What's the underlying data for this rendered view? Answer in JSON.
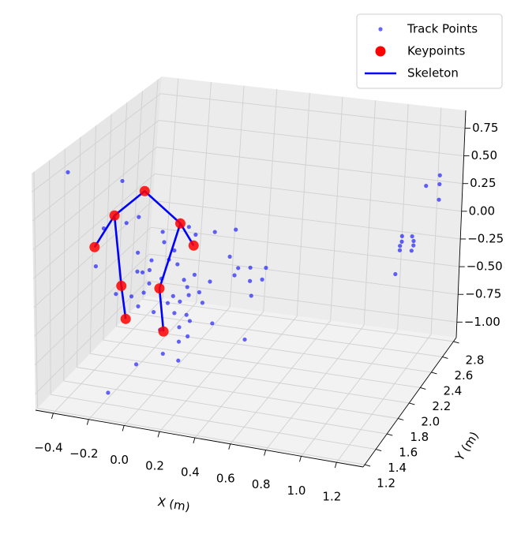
{
  "chart_data": {
    "type": "scatter3d",
    "xlabel": "X (m)",
    "ylabel": "Y (m)",
    "xlim": [
      -0.5,
      1.35
    ],
    "ylim": [
      1.17,
      2.85
    ],
    "zlim": [
      -1.14,
      0.91
    ],
    "xticks": [
      {
        "value": -0.4,
        "label": "−0.4"
      },
      {
        "value": -0.2,
        "label": "−0.2"
      },
      {
        "value": 0,
        "label": "0.0"
      },
      0.2,
      0.4,
      0.6,
      0.8,
      {
        "value": 1,
        "label": "1.0"
      },
      1.2
    ],
    "yticks": [
      1.2,
      1.4,
      1.6,
      1.8,
      {
        "value": 2,
        "label": "2.0"
      },
      2.2,
      2.4,
      2.6,
      2.8
    ],
    "zticks": [
      {
        "value": -1,
        "label": "−1.00"
      },
      {
        "value": -0.75,
        "label": "−0.75"
      },
      {
        "value": -0.5,
        "label": "−0.50"
      },
      {
        "value": -0.25,
        "label": "−0.25"
      },
      {
        "value": 0,
        "label": "0.00"
      },
      0.25,
      {
        "value": 0.5,
        "label": "0.50"
      },
      0.75
    ],
    "grid": true,
    "legend": "upper right",
    "series": [
      {
        "name": "Track Points",
        "kind": "points",
        "color": "#0000ff",
        "x": [
          -0.44,
          -0.34,
          -0.31,
          -0.24,
          -0.48,
          -0.44,
          -0.24,
          -0.24,
          -0.21,
          -0.17,
          -0.16,
          -0.1,
          -0.09,
          -0.03,
          -0.06,
          -0.01,
          0.03,
          0.05,
          0.09,
          0.18,
          0.12,
          0.06,
          0.01,
          -0.03,
          -0.06,
          -0.02,
          0.05,
          0.07,
          0.01,
          0.06,
          0.01,
          -0.08,
          0.01,
          -0.16,
          -0.21,
          -0.27,
          -0.23,
          -0.2,
          -0.17,
          -0.14,
          -0.1,
          0.09,
          0.05,
          0.2,
          0.32,
          0.29,
          0.34,
          0.41,
          0.5,
          0.41,
          0.48,
          0.42,
          0.2,
          0.39,
          0.32,
          -0.1,
          0.14,
          -0.36,
          1.26,
          1.18,
          1.26,
          1.26,
          1.05,
          1.05,
          1.04,
          1.04,
          1.11,
          1.12,
          1.12,
          1.11,
          1.02
        ],
        "y": [
          1.5,
          2,
          2,
          2,
          2,
          2,
          2,
          2,
          2,
          2,
          2,
          2,
          2,
          2,
          2,
          2,
          2,
          2,
          2,
          2,
          2,
          2,
          2,
          2,
          2,
          2,
          2,
          2,
          2,
          2,
          2,
          2,
          2,
          1.8,
          1.5,
          2,
          2,
          2,
          2,
          2,
          2,
          2,
          2,
          2,
          2,
          2,
          2,
          2,
          2,
          2,
          2,
          2,
          2,
          2,
          2,
          2,
          2,
          2,
          2.7,
          2.7,
          2.7,
          2.7,
          2.7,
          2.7,
          2.7,
          2.7,
          2.7,
          2.7,
          2.7,
          2.7,
          2.7
        ],
        "z": [
          0.77,
          0.45,
          0.08,
          0.15,
          -0.35,
          0.0,
          -0.17,
          -0.34,
          -0.34,
          -0.31,
          -0.22,
          0.05,
          -0.04,
          -0.1,
          -0.19,
          -0.22,
          -0.35,
          -0.41,
          -0.29,
          -0.33,
          -0.44,
          -0.48,
          -0.55,
          -0.51,
          -0.58,
          -0.66,
          -0.66,
          -0.71,
          -0.78,
          -0.85,
          -0.91,
          -1.04,
          -1.08,
          -1.03,
          -1.11,
          -0.57,
          -0.65,
          -0.52,
          -0.43,
          -0.68,
          -0.37,
          0.07,
          0.13,
          0.12,
          0.17,
          -0.08,
          -0.17,
          -0.15,
          -0.13,
          -0.27,
          -0.24,
          -0.4,
          -0.7,
          -0.8,
          -0.24,
          -0.83,
          -0.53,
          -0.57,
          0.41,
          0.3,
          0.33,
          0.19,
          -0.18,
          -0.23,
          -0.27,
          -0.31,
          -0.17,
          -0.21,
          -0.25,
          -0.3,
          -0.53
        ]
      },
      {
        "name": "Keypoints",
        "kind": "keypoints",
        "color": "#ff0000",
        "x": [
          -0.21,
          -0.38,
          0.0,
          -0.49,
          0.08,
          -0.33,
          -0.11,
          -0.3,
          -0.08
        ],
        "y": [
          2,
          2,
          2,
          2,
          2,
          2,
          2,
          2,
          2
        ],
        "z": [
          0.39,
          0.13,
          0.15,
          -0.18,
          -0.03,
          -0.49,
          -0.46,
          -0.78,
          -0.84
        ]
      },
      {
        "name": "Skeleton",
        "kind": "line",
        "color": "#0000ff",
        "x": [
          -0.49,
          -0.38,
          -0.21,
          0.0,
          0.08,
          null,
          -0.38,
          -0.33,
          -0.3,
          null,
          0.0,
          -0.11,
          -0.08
        ],
        "y": [
          2,
          2,
          2,
          2,
          2,
          null,
          2,
          2,
          2,
          null,
          2,
          2,
          2
        ],
        "z": [
          -0.18,
          0.13,
          0.39,
          0.15,
          -0.03,
          null,
          0.13,
          -0.49,
          -0.78,
          null,
          0.15,
          -0.46,
          -0.84
        ]
      }
    ]
  }
}
